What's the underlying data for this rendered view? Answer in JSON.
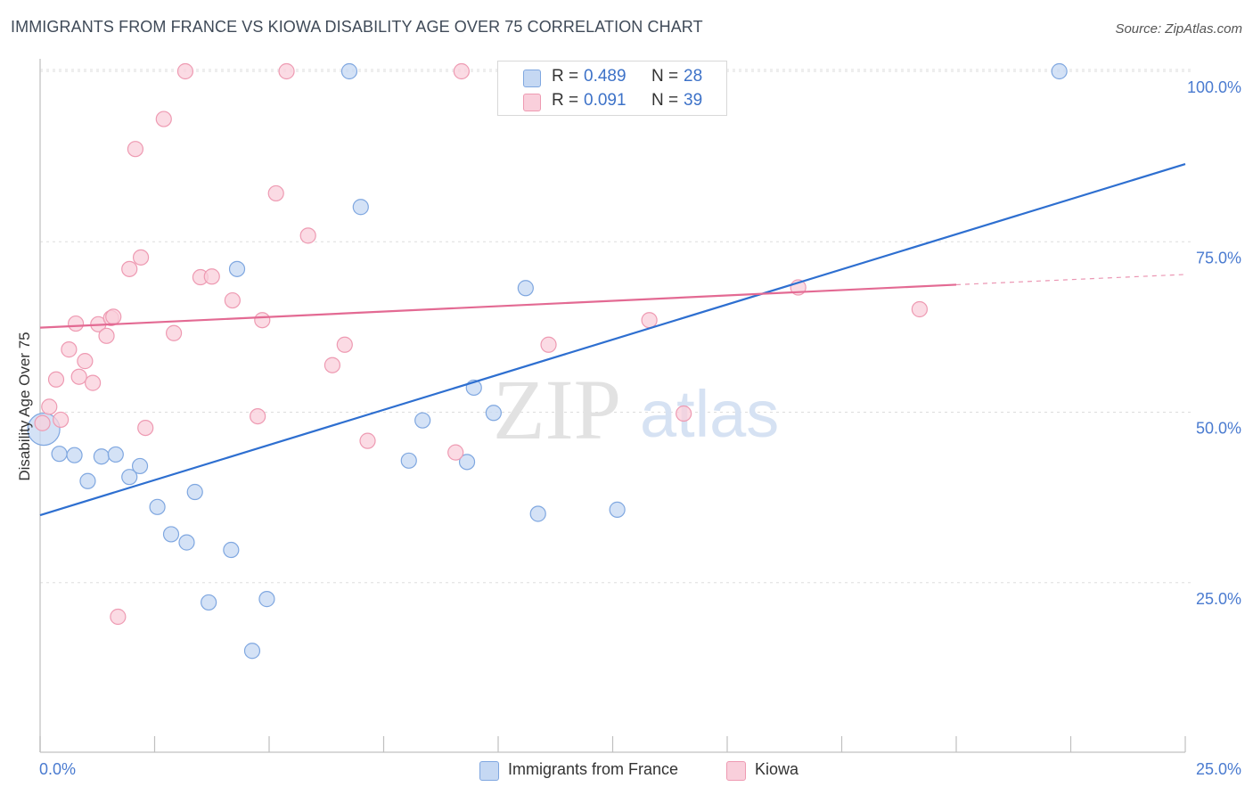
{
  "title": "IMMIGRANTS FROM FRANCE VS KIOWA DISABILITY AGE OVER 75 CORRELATION CHART",
  "source": "Source: ZipAtlas.com",
  "watermark": {
    "zip": "ZIP",
    "atlas": "atlas"
  },
  "legend": {
    "r_label": "R =",
    "n_label": "N =",
    "rows": [
      {
        "r": "0.489",
        "n": "28",
        "color": "#a9c6ef"
      },
      {
        "r": "0.091",
        "n": "39",
        "color": "#f6b7c8"
      }
    ]
  },
  "colors": {
    "blue_fill": "#c5d8f3",
    "blue_stroke": "#7fa7e0",
    "blue_line": "#2e6fd0",
    "pink_fill": "#f9cfdb",
    "pink_stroke": "#ee9ab2",
    "pink_line": "#e36a93",
    "grid": "#dddddd",
    "tick_text": "#4a7bd0"
  },
  "chart_data": {
    "type": "scatter",
    "title": "IMMIGRANTS FROM FRANCE VS KIOWA DISABILITY AGE OVER 75 CORRELATION CHART",
    "xlabel": "",
    "ylabel": "Disability Age Over 75",
    "xlim": [
      0,
      25
    ],
    "ylim": [
      2,
      102
    ],
    "x_tick_labels": [
      "0.0%",
      "25.0%"
    ],
    "y_ticks": [
      25,
      50,
      75,
      100
    ],
    "y_tick_labels": [
      "25.0%",
      "50.0%",
      "75.0%",
      "100.0%"
    ],
    "grid": true,
    "legend_position": "top-center",
    "series": [
      {
        "name": "Immigrants from France",
        "r": 0.489,
        "n": 28,
        "trend": {
          "x": [
            0,
            25
          ],
          "y": [
            34.9,
            86.4
          ]
        },
        "points": [
          {
            "x": 0.08,
            "y": 47.5,
            "big": true
          },
          {
            "x": 0.42,
            "y": 43.9
          },
          {
            "x": 0.75,
            "y": 43.7
          },
          {
            "x": 1.04,
            "y": 39.9
          },
          {
            "x": 1.34,
            "y": 43.5
          },
          {
            "x": 1.65,
            "y": 43.8
          },
          {
            "x": 1.95,
            "y": 40.5
          },
          {
            "x": 2.18,
            "y": 42.1
          },
          {
            "x": 2.56,
            "y": 36.1
          },
          {
            "x": 2.86,
            "y": 32.1
          },
          {
            "x": 3.2,
            "y": 30.9
          },
          {
            "x": 3.38,
            "y": 38.3
          },
          {
            "x": 3.68,
            "y": 22.1
          },
          {
            "x": 4.17,
            "y": 29.8
          },
          {
            "x": 4.3,
            "y": 71.0
          },
          {
            "x": 4.63,
            "y": 15.0
          },
          {
            "x": 4.95,
            "y": 22.6
          },
          {
            "x": 6.75,
            "y": 100.0
          },
          {
            "x": 7.0,
            "y": 80.1
          },
          {
            "x": 8.05,
            "y": 42.9
          },
          {
            "x": 8.35,
            "y": 48.8
          },
          {
            "x": 9.32,
            "y": 42.7
          },
          {
            "x": 9.47,
            "y": 53.6
          },
          {
            "x": 9.9,
            "y": 49.9
          },
          {
            "x": 10.6,
            "y": 68.2
          },
          {
            "x": 10.87,
            "y": 35.1
          },
          {
            "x": 12.6,
            "y": 35.7
          },
          {
            "x": 22.25,
            "y": 100.0
          }
        ]
      },
      {
        "name": "Kiowa",
        "r": 0.091,
        "n": 39,
        "trend": {
          "x": [
            0,
            20
          ],
          "y": [
            62.4,
            68.7
          ]
        },
        "trend_dashed": {
          "x": [
            20,
            25
          ],
          "y": [
            68.7,
            70.2
          ]
        },
        "points": [
          {
            "x": 0.05,
            "y": 48.4
          },
          {
            "x": 0.2,
            "y": 50.8
          },
          {
            "x": 0.35,
            "y": 54.8
          },
          {
            "x": 0.45,
            "y": 48.9
          },
          {
            "x": 0.63,
            "y": 59.2
          },
          {
            "x": 0.78,
            "y": 63.0
          },
          {
            "x": 0.85,
            "y": 55.2
          },
          {
            "x": 0.98,
            "y": 57.5
          },
          {
            "x": 1.15,
            "y": 54.3
          },
          {
            "x": 1.27,
            "y": 62.9
          },
          {
            "x": 1.45,
            "y": 61.2
          },
          {
            "x": 1.55,
            "y": 63.8
          },
          {
            "x": 1.6,
            "y": 64.0
          },
          {
            "x": 1.7,
            "y": 20.0
          },
          {
            "x": 1.95,
            "y": 71.0
          },
          {
            "x": 2.08,
            "y": 88.6
          },
          {
            "x": 2.2,
            "y": 72.7
          },
          {
            "x": 2.3,
            "y": 47.7
          },
          {
            "x": 2.7,
            "y": 93.0
          },
          {
            "x": 2.92,
            "y": 61.6
          },
          {
            "x": 3.17,
            "y": 100.0
          },
          {
            "x": 3.5,
            "y": 69.8
          },
          {
            "x": 3.75,
            "y": 69.9
          },
          {
            "x": 4.2,
            "y": 66.4
          },
          {
            "x": 4.75,
            "y": 49.4
          },
          {
            "x": 4.85,
            "y": 63.5
          },
          {
            "x": 5.15,
            "y": 82.1
          },
          {
            "x": 5.38,
            "y": 100.0
          },
          {
            "x": 5.85,
            "y": 75.9
          },
          {
            "x": 6.38,
            "y": 56.9
          },
          {
            "x": 6.65,
            "y": 59.9
          },
          {
            "x": 7.15,
            "y": 45.8
          },
          {
            "x": 9.07,
            "y": 44.1
          },
          {
            "x": 9.2,
            "y": 100.0
          },
          {
            "x": 11.1,
            "y": 59.9
          },
          {
            "x": 13.3,
            "y": 63.5
          },
          {
            "x": 14.05,
            "y": 49.8
          },
          {
            "x": 16.55,
            "y": 68.3
          },
          {
            "x": 19.2,
            "y": 65.1
          }
        ]
      }
    ]
  }
}
